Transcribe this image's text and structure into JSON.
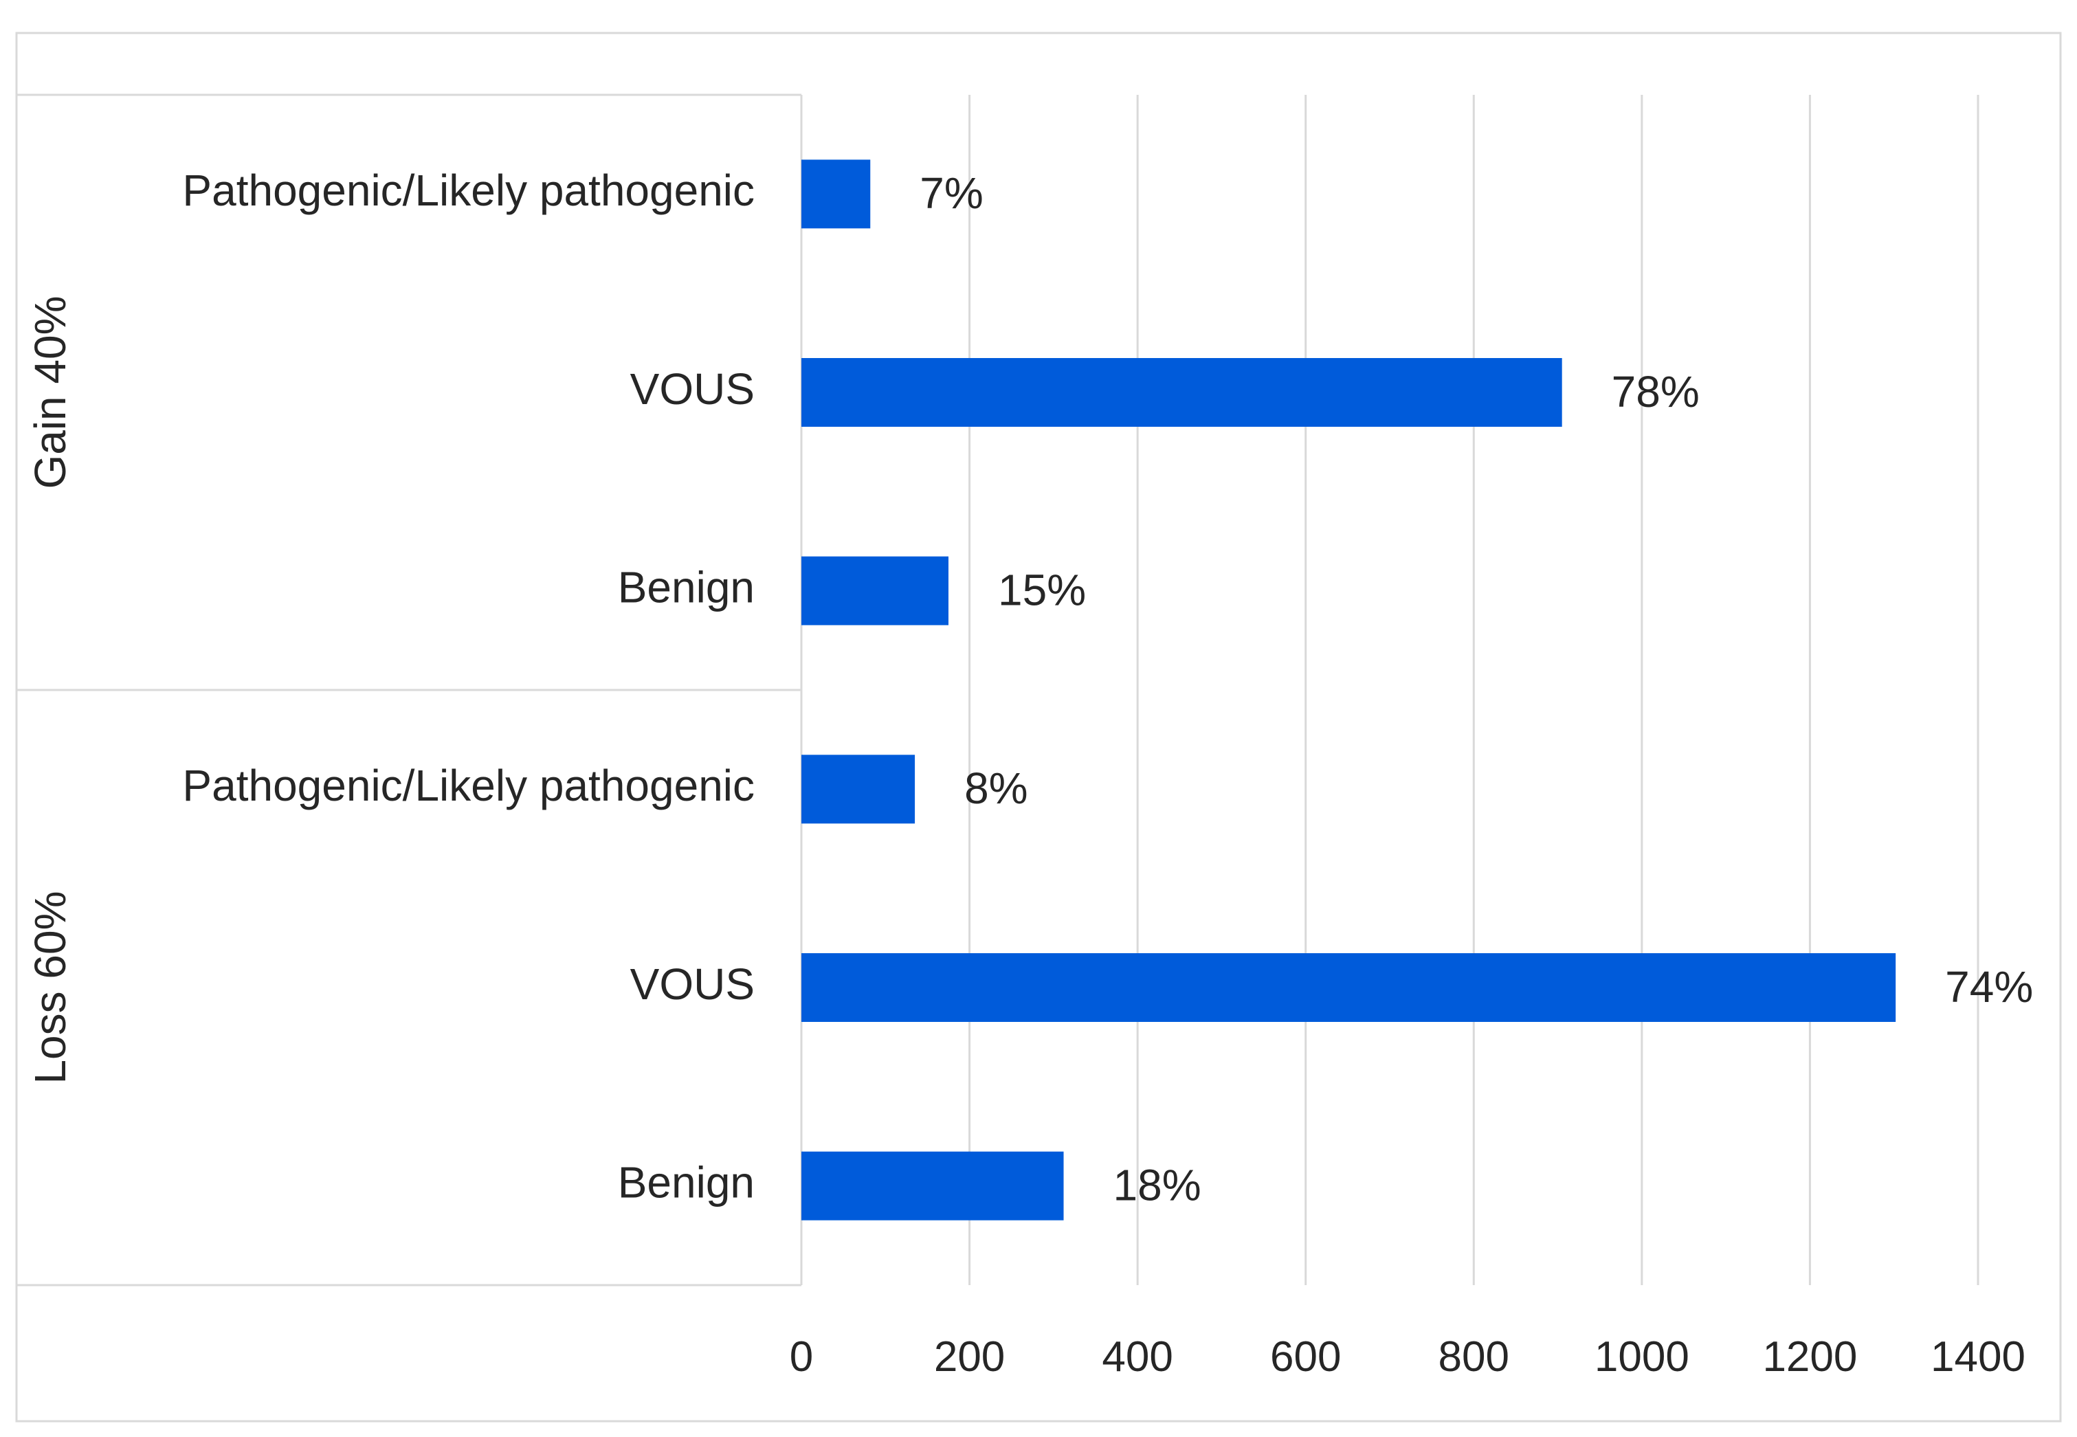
{
  "chart_data": {
    "type": "bar",
    "orientation": "horizontal",
    "title": "",
    "xlabel": "",
    "ylabel": "",
    "xlim": [
      0,
      1400
    ],
    "x_ticks": [
      0,
      200,
      400,
      600,
      800,
      1000,
      1200,
      1400
    ],
    "gridlines": "vertical",
    "legend": "none",
    "bar_color": "#005BDA",
    "groups": [
      {
        "name": "Gain 40%",
        "bars": [
          {
            "category": "Pathogenic/Likely pathogenic",
            "value": 82,
            "label": "7%"
          },
          {
            "category": "VOUS",
            "value": 905,
            "label": "78%"
          },
          {
            "category": "Benign",
            "value": 175,
            "label": "15%"
          }
        ]
      },
      {
        "name": "Loss 60%",
        "bars": [
          {
            "category": "Pathogenic/Likely pathogenic",
            "value": 135,
            "label": "8%"
          },
          {
            "category": "VOUS",
            "value": 1302,
            "label": "74%"
          },
          {
            "category": "Benign",
            "value": 312,
            "label": "18%"
          }
        ]
      }
    ]
  }
}
